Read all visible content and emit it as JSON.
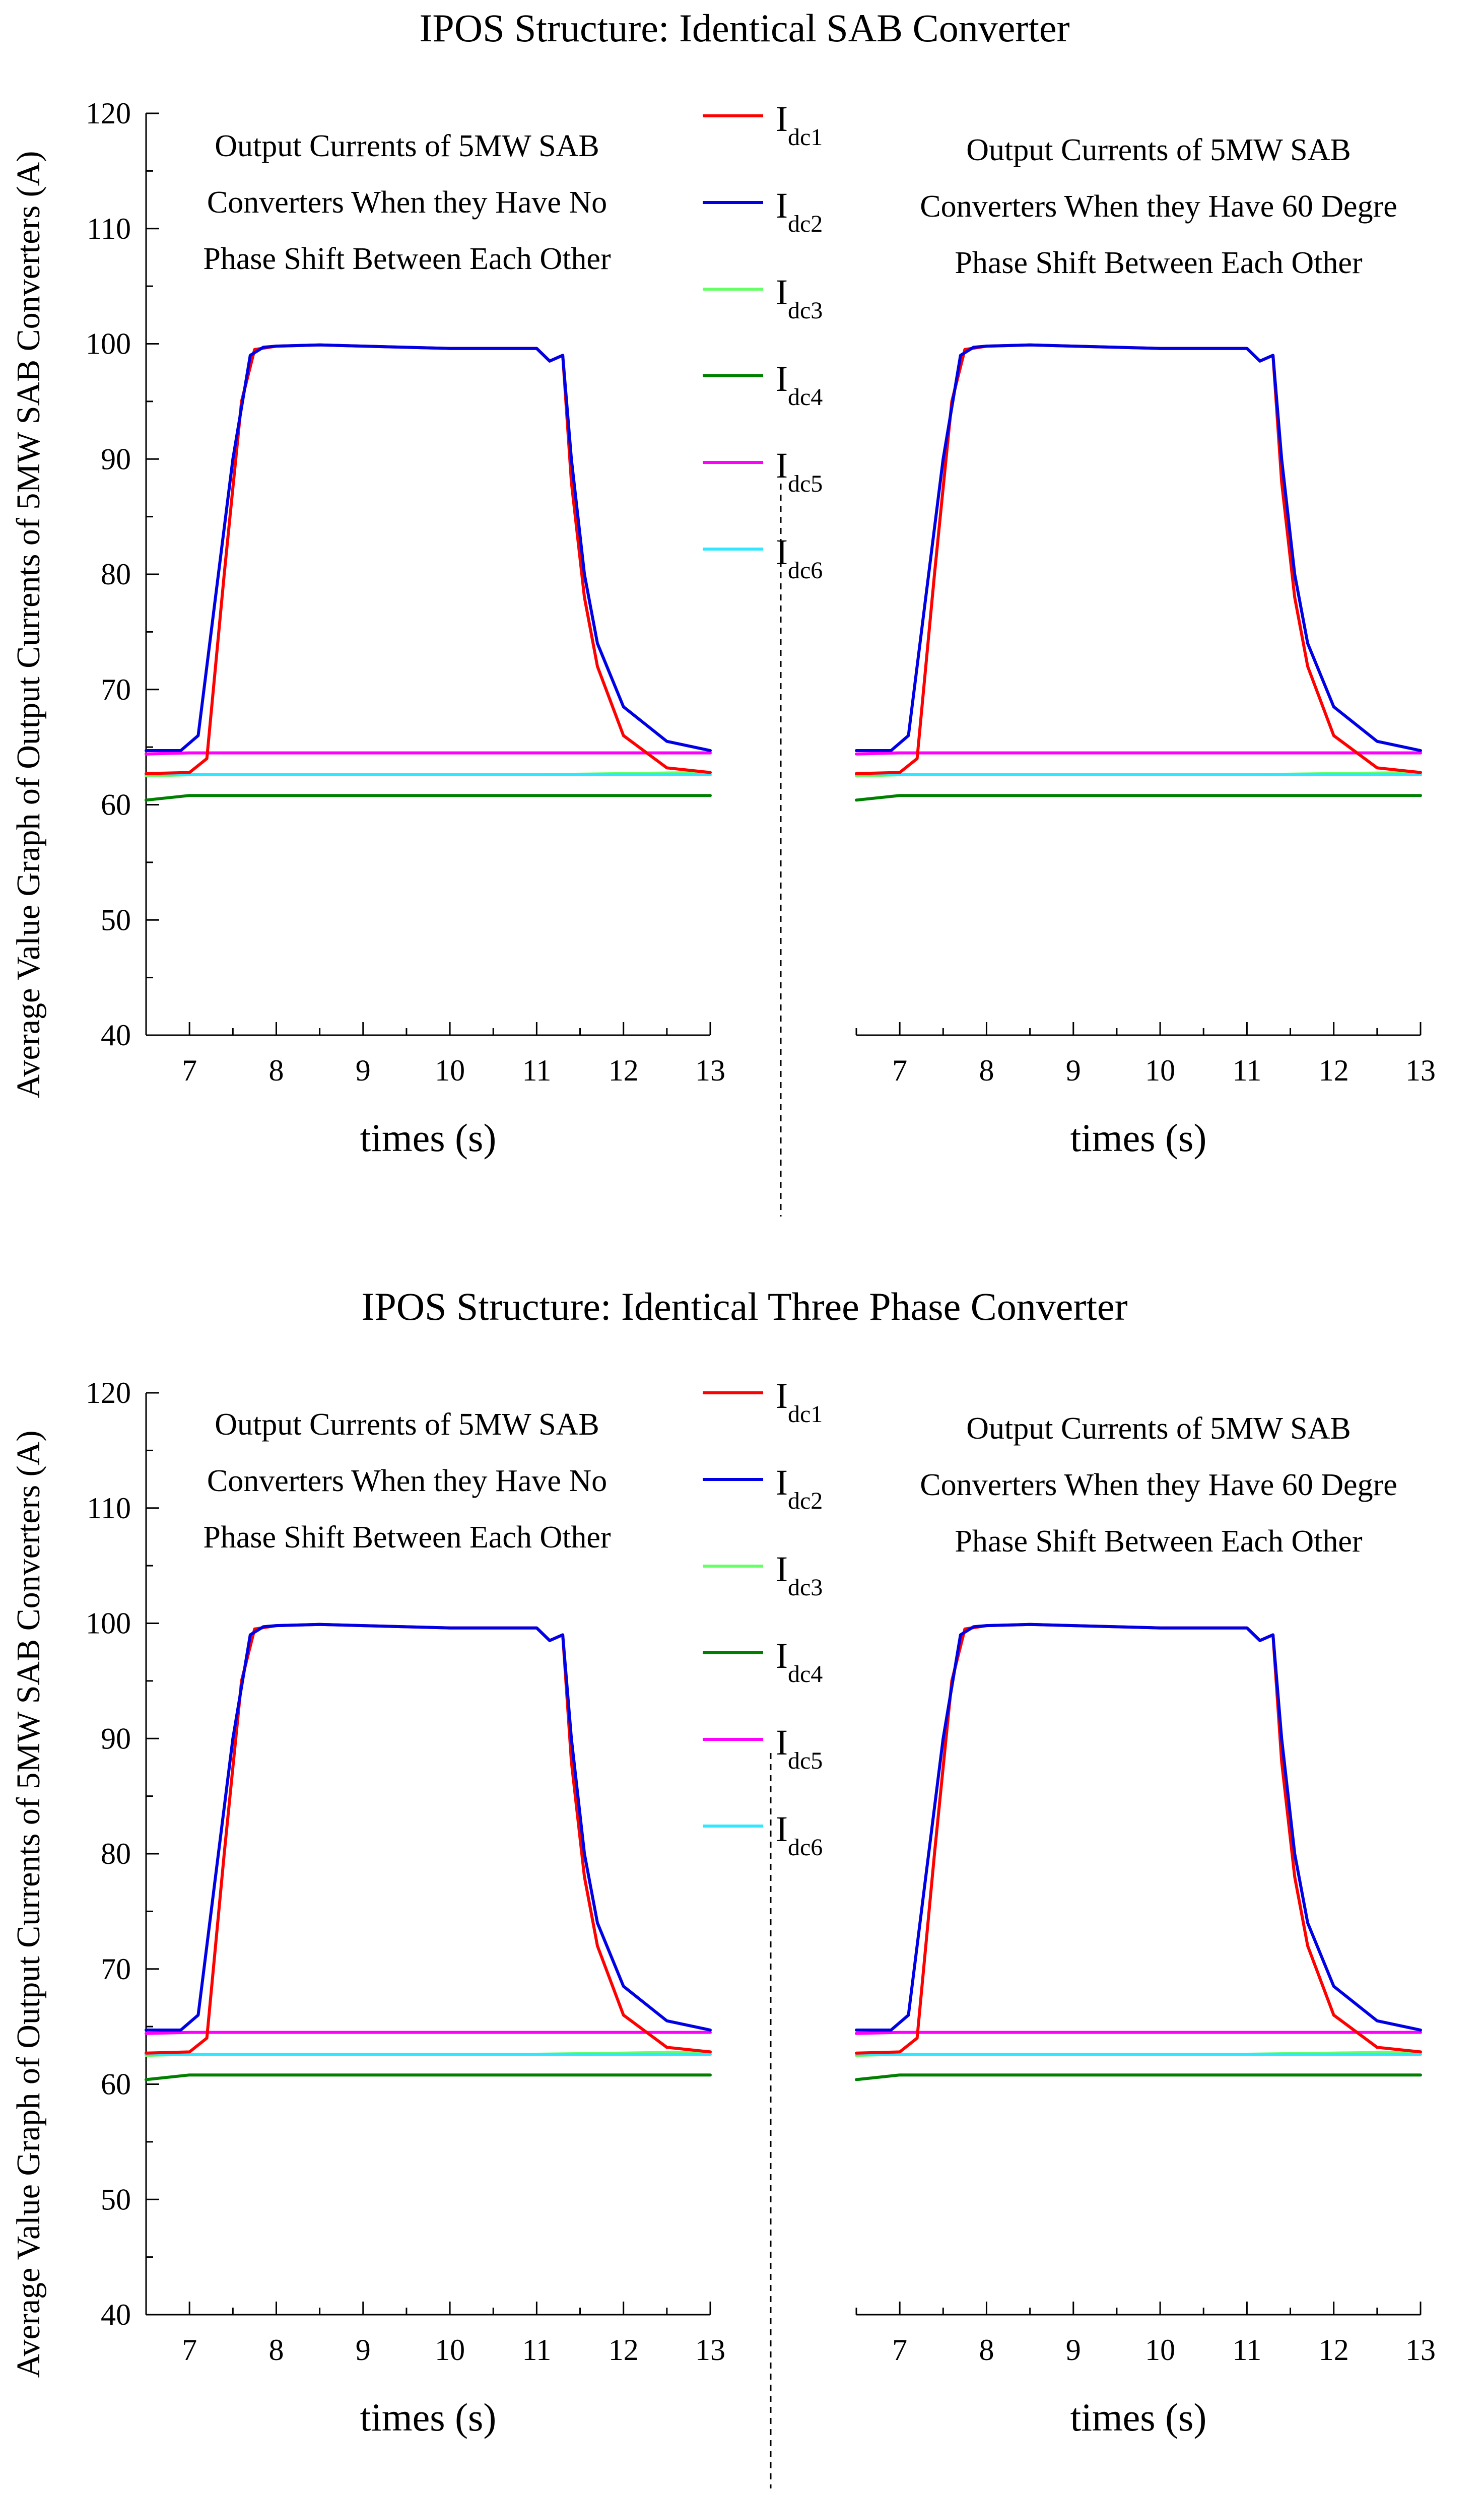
{
  "figure": {
    "y_axis_title": "Average Value Graph of Output Currents of 5MW SAB Converters (A)"
  },
  "colors": {
    "Idc1": "#ff0000",
    "Idc2": "#0000e6",
    "Idc3": "#66ff66",
    "Idc4": "#008000",
    "Idc5": "#ff00ff",
    "Idc6": "#33e6ff",
    "axis": "#000000"
  },
  "legend": [
    {
      "main": "I",
      "sub": "dc1",
      "color": "#ff0000"
    },
    {
      "main": "I",
      "sub": "dc2",
      "color": "#0000e6"
    },
    {
      "main": "I",
      "sub": "dc3",
      "color": "#66ff66"
    },
    {
      "main": "I",
      "sub": "dc4",
      "color": "#008000"
    },
    {
      "main": "I",
      "sub": "dc5",
      "color": "#ff00ff"
    },
    {
      "main": "I",
      "sub": "dc6",
      "color": "#33e6ff"
    }
  ],
  "chart_data": [
    {
      "type": "line",
      "section_title": "IPOS Structure: Identical SAB Converter",
      "annotation": [
        "Output Currents of 5MW SAB",
        "Converters When they Have No",
        "Phase Shift Between Each Other"
      ],
      "xlabel": "times (s)",
      "ylabel": "Average Value Graph of Output Currents of 5MW SAB Converters (A)",
      "xlim": [
        6.5,
        13
      ],
      "ylim": [
        40,
        120
      ],
      "xticks": [
        7,
        8,
        9,
        10,
        11,
        12,
        13
      ],
      "yticks": [
        40,
        50,
        60,
        70,
        80,
        90,
        100,
        110,
        120
      ],
      "series": [
        {
          "name": "Idc1",
          "x": [
            6.5,
            7.0,
            7.2,
            7.4,
            7.6,
            7.75,
            8.0,
            8.5,
            9.0,
            10.0,
            11.0,
            11.15,
            11.3,
            11.4,
            11.55,
            11.7,
            12.0,
            12.5,
            13.0
          ],
          "values": [
            62.7,
            62.8,
            64.0,
            80.0,
            95.0,
            99.5,
            99.8,
            99.9,
            99.8,
            99.6,
            99.6,
            98.5,
            99.0,
            88.0,
            78.0,
            72.0,
            66.0,
            63.2,
            62.8
          ]
        },
        {
          "name": "Idc2",
          "x": [
            6.5,
            6.9,
            7.1,
            7.3,
            7.5,
            7.7,
            7.85,
            8.0,
            8.5,
            9.0,
            10.0,
            11.0,
            11.15,
            11.3,
            11.4,
            11.55,
            11.7,
            12.0,
            12.5,
            13.0
          ],
          "values": [
            64.7,
            64.7,
            66.0,
            78.0,
            90.0,
            99.0,
            99.7,
            99.8,
            99.9,
            99.8,
            99.6,
            99.6,
            98.5,
            99.0,
            90.0,
            80.0,
            74.0,
            68.5,
            65.5,
            64.7
          ]
        },
        {
          "name": "Idc3",
          "x": [
            6.5,
            7.0,
            8.0,
            9.0,
            10.0,
            11.0,
            12.0,
            13.0
          ],
          "values": [
            62.5,
            62.6,
            62.6,
            62.6,
            62.6,
            62.6,
            62.7,
            62.8
          ]
        },
        {
          "name": "Idc4",
          "x": [
            6.5,
            7.0,
            8.0,
            9.0,
            10.0,
            11.0,
            12.0,
            13.0
          ],
          "values": [
            60.4,
            60.8,
            60.8,
            60.8,
            60.8,
            60.8,
            60.8,
            60.8
          ]
        },
        {
          "name": "Idc5",
          "x": [
            6.5,
            7.0,
            8.0,
            9.0,
            10.0,
            11.0,
            12.0,
            13.0
          ],
          "values": [
            64.4,
            64.5,
            64.5,
            64.5,
            64.5,
            64.5,
            64.5,
            64.5
          ]
        },
        {
          "name": "Idc6",
          "x": [
            6.5,
            7.0,
            8.0,
            9.0,
            10.0,
            11.0,
            12.0,
            13.0
          ],
          "values": [
            62.6,
            62.6,
            62.6,
            62.6,
            62.6,
            62.6,
            62.6,
            62.6
          ]
        }
      ]
    },
    {
      "type": "line",
      "annotation": [
        "Output Currents of 5MW SAB",
        "Converters When they Have 60 Degre",
        "Phase Shift Between Each Other"
      ],
      "xlabel": "times (s)",
      "xlim": [
        6.5,
        13
      ],
      "ylim": [
        40,
        120
      ],
      "xticks": [
        7,
        8,
        9,
        10,
        11,
        12,
        13
      ],
      "series": [
        {
          "name": "Idc1",
          "x": [
            6.5,
            7.0,
            7.2,
            7.4,
            7.6,
            7.75,
            8.0,
            8.5,
            9.0,
            10.0,
            11.0,
            11.15,
            11.3,
            11.4,
            11.55,
            11.7,
            12.0,
            12.5,
            13.0
          ],
          "values": [
            62.7,
            62.8,
            64.0,
            80.0,
            95.0,
            99.5,
            99.8,
            99.9,
            99.8,
            99.6,
            99.6,
            98.5,
            99.0,
            88.0,
            78.0,
            72.0,
            66.0,
            63.2,
            62.8
          ]
        },
        {
          "name": "Idc2",
          "x": [
            6.5,
            6.9,
            7.1,
            7.3,
            7.5,
            7.7,
            7.85,
            8.0,
            8.5,
            9.0,
            10.0,
            11.0,
            11.15,
            11.3,
            11.4,
            11.55,
            11.7,
            12.0,
            12.5,
            13.0
          ],
          "values": [
            64.7,
            64.7,
            66.0,
            78.0,
            90.0,
            99.0,
            99.7,
            99.8,
            99.9,
            99.8,
            99.6,
            99.6,
            98.5,
            99.0,
            90.0,
            80.0,
            74.0,
            68.5,
            65.5,
            64.7
          ]
        },
        {
          "name": "Idc3",
          "x": [
            6.5,
            7.0,
            8.0,
            9.0,
            10.0,
            11.0,
            12.0,
            13.0
          ],
          "values": [
            62.5,
            62.6,
            62.6,
            62.6,
            62.6,
            62.6,
            62.7,
            62.8
          ]
        },
        {
          "name": "Idc4",
          "x": [
            6.5,
            7.0,
            8.0,
            9.0,
            10.0,
            11.0,
            12.0,
            13.0
          ],
          "values": [
            60.4,
            60.8,
            60.8,
            60.8,
            60.8,
            60.8,
            60.8,
            60.8
          ]
        },
        {
          "name": "Idc5",
          "x": [
            6.5,
            7.0,
            8.0,
            9.0,
            10.0,
            11.0,
            12.0,
            13.0
          ],
          "values": [
            64.4,
            64.5,
            64.5,
            64.5,
            64.5,
            64.5,
            64.5,
            64.5
          ]
        },
        {
          "name": "Idc6",
          "x": [
            6.5,
            7.0,
            8.0,
            9.0,
            10.0,
            11.0,
            12.0,
            13.0
          ],
          "values": [
            62.6,
            62.6,
            62.6,
            62.6,
            62.6,
            62.6,
            62.6,
            62.6
          ]
        }
      ]
    },
    {
      "type": "line",
      "section_title": "IPOS Structure: Identical Three Phase Converter",
      "annotation": [
        "Output Currents of 5MW SAB",
        "Converters When they Have No",
        "Phase Shift Between Each Other"
      ],
      "xlabel": "times (s)",
      "ylabel": "Average Value Graph of Output Currents of 5MW SAB Converters (A)",
      "xlim": [
        6.5,
        13
      ],
      "ylim": [
        40,
        120
      ],
      "xticks": [
        7,
        8,
        9,
        10,
        11,
        12,
        13
      ],
      "yticks": [
        40,
        50,
        60,
        70,
        80,
        90,
        100,
        110,
        120
      ],
      "series": [
        {
          "name": "Idc1",
          "x": [
            6.5,
            7.0,
            7.2,
            7.4,
            7.6,
            7.75,
            8.0,
            8.5,
            9.0,
            10.0,
            11.0,
            11.15,
            11.3,
            11.4,
            11.55,
            11.7,
            12.0,
            12.5,
            13.0
          ],
          "values": [
            62.7,
            62.8,
            64.0,
            80.0,
            95.0,
            99.5,
            99.8,
            99.9,
            99.8,
            99.6,
            99.6,
            98.5,
            99.0,
            88.0,
            78.0,
            72.0,
            66.0,
            63.2,
            62.8
          ]
        },
        {
          "name": "Idc2",
          "x": [
            6.5,
            6.9,
            7.1,
            7.3,
            7.5,
            7.7,
            7.85,
            8.0,
            8.5,
            9.0,
            10.0,
            11.0,
            11.15,
            11.3,
            11.4,
            11.55,
            11.7,
            12.0,
            12.5,
            13.0
          ],
          "values": [
            64.7,
            64.7,
            66.0,
            78.0,
            90.0,
            99.0,
            99.7,
            99.8,
            99.9,
            99.8,
            99.6,
            99.6,
            98.5,
            99.0,
            90.0,
            80.0,
            74.0,
            68.5,
            65.5,
            64.7
          ]
        },
        {
          "name": "Idc3",
          "x": [
            6.5,
            7.0,
            8.0,
            9.0,
            10.0,
            11.0,
            12.0,
            13.0
          ],
          "values": [
            62.5,
            62.6,
            62.6,
            62.6,
            62.6,
            62.6,
            62.7,
            62.8
          ]
        },
        {
          "name": "Idc4",
          "x": [
            6.5,
            7.0,
            8.0,
            9.0,
            10.0,
            11.0,
            12.0,
            13.0
          ],
          "values": [
            60.4,
            60.8,
            60.8,
            60.8,
            60.8,
            60.8,
            60.8,
            60.8
          ]
        },
        {
          "name": "Idc5",
          "x": [
            6.5,
            7.0,
            8.0,
            9.0,
            10.0,
            11.0,
            12.0,
            13.0
          ],
          "values": [
            64.4,
            64.5,
            64.5,
            64.5,
            64.5,
            64.5,
            64.5,
            64.5
          ]
        },
        {
          "name": "Idc6",
          "x": [
            6.5,
            7.0,
            8.0,
            9.0,
            10.0,
            11.0,
            12.0,
            13.0
          ],
          "values": [
            62.6,
            62.6,
            62.6,
            62.6,
            62.6,
            62.6,
            62.6,
            62.6
          ]
        }
      ]
    },
    {
      "type": "line",
      "annotation": [
        "Output Currents of 5MW SAB",
        "Converters When they Have 60 Degre",
        "Phase Shift Between Each Other"
      ],
      "xlabel": "times (s)",
      "xlim": [
        6.5,
        13
      ],
      "ylim": [
        40,
        120
      ],
      "xticks": [
        7,
        8,
        9,
        10,
        11,
        12,
        13
      ],
      "series": [
        {
          "name": "Idc1",
          "x": [
            6.5,
            7.0,
            7.2,
            7.4,
            7.6,
            7.75,
            8.0,
            8.5,
            9.0,
            10.0,
            11.0,
            11.15,
            11.3,
            11.4,
            11.55,
            11.7,
            12.0,
            12.5,
            13.0
          ],
          "values": [
            62.7,
            62.8,
            64.0,
            80.0,
            95.0,
            99.5,
            99.8,
            99.9,
            99.8,
            99.6,
            99.6,
            98.5,
            99.0,
            88.0,
            78.0,
            72.0,
            66.0,
            63.2,
            62.8
          ]
        },
        {
          "name": "Idc2",
          "x": [
            6.5,
            6.9,
            7.1,
            7.3,
            7.5,
            7.7,
            7.85,
            8.0,
            8.5,
            9.0,
            10.0,
            11.0,
            11.15,
            11.3,
            11.4,
            11.55,
            11.7,
            12.0,
            12.5,
            13.0
          ],
          "values": [
            64.7,
            64.7,
            66.0,
            78.0,
            90.0,
            99.0,
            99.7,
            99.8,
            99.9,
            99.8,
            99.6,
            99.6,
            98.5,
            99.0,
            90.0,
            80.0,
            74.0,
            68.5,
            65.5,
            64.7
          ]
        },
        {
          "name": "Idc3",
          "x": [
            6.5,
            7.0,
            8.0,
            9.0,
            10.0,
            11.0,
            12.0,
            13.0
          ],
          "values": [
            62.5,
            62.6,
            62.6,
            62.6,
            62.6,
            62.6,
            62.7,
            62.8
          ]
        },
        {
          "name": "Idc4",
          "x": [
            6.5,
            7.0,
            8.0,
            9.0,
            10.0,
            11.0,
            12.0,
            13.0
          ],
          "values": [
            60.4,
            60.8,
            60.8,
            60.8,
            60.8,
            60.8,
            60.8,
            60.8
          ]
        },
        {
          "name": "Idc5",
          "x": [
            6.5,
            7.0,
            8.0,
            9.0,
            10.0,
            11.0,
            12.0,
            13.0
          ],
          "values": [
            64.4,
            64.5,
            64.5,
            64.5,
            64.5,
            64.5,
            64.5,
            64.5
          ]
        },
        {
          "name": "Idc6",
          "x": [
            6.5,
            7.0,
            8.0,
            9.0,
            10.0,
            11.0,
            12.0,
            13.0
          ],
          "values": [
            62.6,
            62.6,
            62.6,
            62.6,
            62.6,
            62.6,
            62.6,
            62.6
          ]
        }
      ]
    }
  ]
}
